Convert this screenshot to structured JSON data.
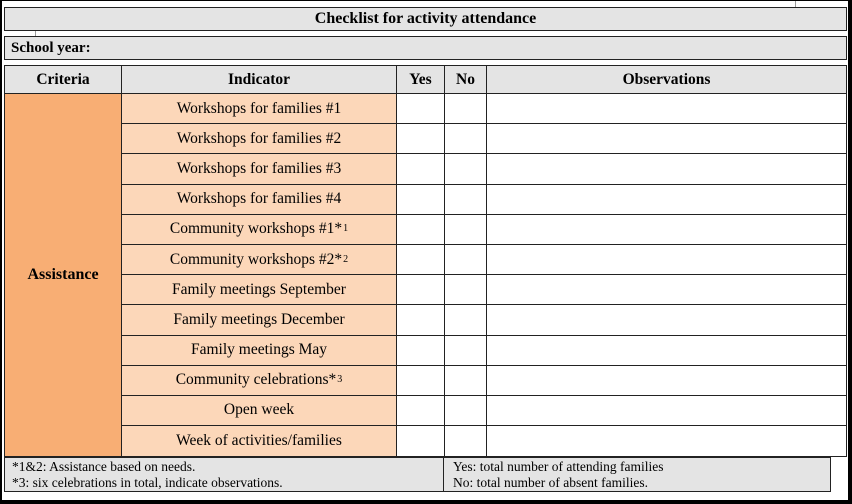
{
  "title": "Checklist for activity attendance",
  "school_year": {
    "label": "School year:",
    "value": ""
  },
  "table": {
    "headers": {
      "criteria": "Criteria",
      "indicator": "Indicator",
      "yes": "Yes",
      "no": "No",
      "observations": "Observations"
    },
    "criteria_group": "Assistance",
    "rows": [
      {
        "indicator": "Workshops for families #1",
        "sup": "",
        "yes": "",
        "no": "",
        "observations": ""
      },
      {
        "indicator": "Workshops for families #2",
        "sup": "",
        "yes": "",
        "no": "",
        "observations": ""
      },
      {
        "indicator": "Workshops for families #3",
        "sup": "",
        "yes": "",
        "no": "",
        "observations": ""
      },
      {
        "indicator": "Workshops for families #4",
        "sup": "",
        "yes": "",
        "no": "",
        "observations": ""
      },
      {
        "indicator": "Community workshops #1*",
        "sup": "1",
        "yes": "",
        "no": "",
        "observations": ""
      },
      {
        "indicator": "Community workshops #2*",
        "sup": "2",
        "yes": "",
        "no": "",
        "observations": ""
      },
      {
        "indicator": "Family meetings September",
        "sup": "",
        "yes": "",
        "no": "",
        "observations": ""
      },
      {
        "indicator": "Family meetings December",
        "sup": "",
        "yes": "",
        "no": "",
        "observations": ""
      },
      {
        "indicator": "Family meetings May",
        "sup": "",
        "yes": "",
        "no": "",
        "observations": ""
      },
      {
        "indicator": "Community celebrations*",
        "sup": "3",
        "yes": "",
        "no": "",
        "observations": ""
      },
      {
        "indicator": "Open week",
        "sup": "",
        "yes": "",
        "no": "",
        "observations": ""
      },
      {
        "indicator": "Week of activities/families",
        "sup": "",
        "yes": "",
        "no": "",
        "observations": ""
      }
    ]
  },
  "footnotes": {
    "left": [
      "*1&2: Assistance based on needs.",
      "*3: six celebrations in total, indicate observations."
    ],
    "right": [
      "Yes: total number of attending families",
      "No: total number of absent families."
    ]
  },
  "colors": {
    "criteria_bg": "#F8AE74",
    "indicator_bg": "#FCD7B9",
    "band_bg": "#E4E4E4",
    "border": "#222222"
  }
}
